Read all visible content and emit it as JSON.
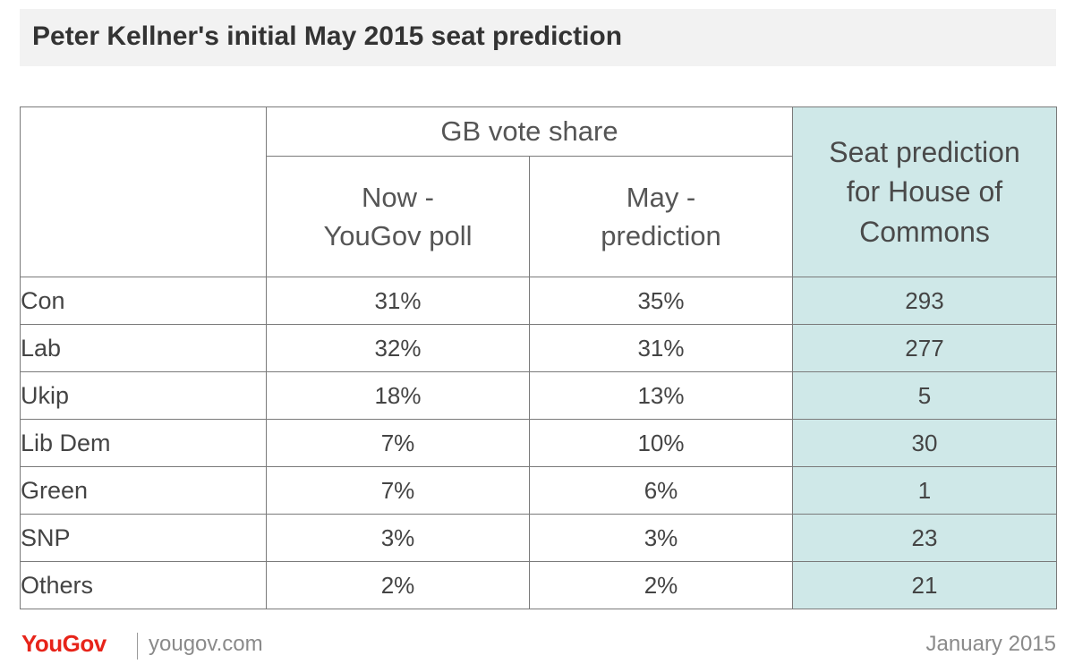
{
  "title": "Peter Kellner's initial May 2015 seat prediction",
  "chart_data": {
    "type": "table",
    "group_header": "GB vote share",
    "columns": [
      {
        "line1": "Now -",
        "line2": "YouGov poll"
      },
      {
        "line1": "May -",
        "line2": "prediction"
      }
    ],
    "seat_header": {
      "line1": "Seat prediction",
      "line2": "for House of",
      "line3": "Commons"
    },
    "rows": [
      {
        "party": "Con",
        "now": "31%",
        "may": "35%",
        "seats": "293"
      },
      {
        "party": "Lab",
        "now": "32%",
        "may": "31%",
        "seats": "277"
      },
      {
        "party": "Ukip",
        "now": "18%",
        "may": "13%",
        "seats": "5"
      },
      {
        "party": "Lib Dem",
        "now": "7%",
        "may": "10%",
        "seats": "30"
      },
      {
        "party": "Green",
        "now": "7%",
        "may": "6%",
        "seats": "1"
      },
      {
        "party": "SNP",
        "now": "3%",
        "may": "3%",
        "seats": "23"
      },
      {
        "party": "Others",
        "now": "2%",
        "may": "2%",
        "seats": "21"
      }
    ]
  },
  "footer": {
    "logo": "YouGov",
    "site": "yougov.com",
    "date": "January 2015"
  },
  "colors": {
    "title_bar": "#f2f2f2",
    "seat_column": "#cfe8e8",
    "brand_red": "#e7241a"
  }
}
